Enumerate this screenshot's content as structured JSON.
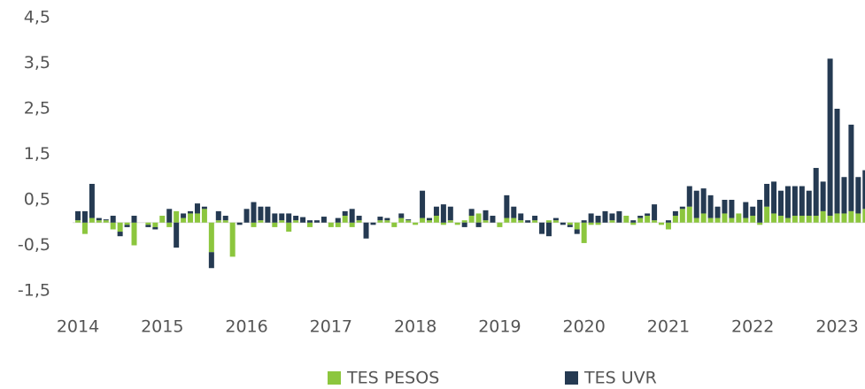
{
  "chart_data": {
    "type": "bar",
    "stacked": true,
    "categories": [
      "2014",
      null,
      null,
      null,
      null,
      null,
      null,
      null,
      null,
      null,
      null,
      null,
      "2015",
      null,
      null,
      null,
      null,
      null,
      null,
      null,
      null,
      null,
      null,
      null,
      "2016",
      null,
      null,
      null,
      null,
      null,
      null,
      null,
      null,
      null,
      null,
      null,
      "2017",
      null,
      null,
      null,
      null,
      null,
      null,
      null,
      null,
      null,
      null,
      null,
      "2018",
      null,
      null,
      null,
      null,
      null,
      null,
      null,
      null,
      null,
      null,
      null,
      "2019",
      null,
      null,
      null,
      null,
      null,
      null,
      null,
      null,
      null,
      null,
      null,
      "2020",
      null,
      null,
      null,
      null,
      null,
      null,
      null,
      null,
      null,
      null,
      null,
      "2021",
      null,
      null,
      null,
      null,
      null,
      null,
      null,
      null,
      null,
      null,
      null,
      "2022",
      null,
      null,
      null,
      null,
      null,
      null,
      null,
      null,
      null,
      null,
      null,
      "2023",
      null,
      null,
      null,
      null
    ],
    "series": [
      {
        "name": "TES PESOS",
        "color": "#8cc63e",
        "values": [
          0.05,
          -0.25,
          0.1,
          0.05,
          0.05,
          -0.15,
          -0.2,
          -0.05,
          -0.5,
          0,
          -0.05,
          -0.1,
          0.15,
          -0.1,
          0.25,
          0.1,
          0.2,
          0.2,
          0.3,
          -0.65,
          0.05,
          0.05,
          -0.75,
          0,
          0,
          -0.1,
          0.05,
          0,
          -0.1,
          0.05,
          -0.2,
          0.05,
          0,
          -0.1,
          0,
          0,
          -0.1,
          -0.1,
          0.15,
          -0.1,
          0.05,
          0,
          0,
          0.05,
          0.05,
          -0.1,
          0.1,
          0.05,
          -0.05,
          0.1,
          0.05,
          0.15,
          -0.05,
          0.05,
          -0.05,
          0.05,
          0.15,
          0.2,
          0.05,
          0,
          -0.1,
          0.1,
          0.1,
          0.05,
          0,
          0.05,
          0,
          0.05,
          0.05,
          0,
          -0.05,
          -0.15,
          -0.45,
          -0.05,
          -0.05,
          0,
          0.05,
          0,
          0.15,
          -0.05,
          0.1,
          0.15,
          0.05,
          -0.05,
          -0.15,
          0.15,
          0.3,
          0.35,
          0.1,
          0.2,
          0.1,
          0.1,
          0.2,
          0.1,
          0.2,
          0.1,
          0.15,
          -0.05,
          0.35,
          0.2,
          0.15,
          0.1,
          0.15,
          0.15,
          0.15,
          0.15,
          0.25,
          0.15,
          0.2,
          0.2,
          0.25,
          0.2,
          0.3
        ]
      },
      {
        "name": "TES UVR",
        "color": "#253a52",
        "values": [
          0.2,
          0.25,
          0.75,
          0.05,
          0.02,
          0.15,
          -0.1,
          -0.05,
          0.15,
          0,
          -0.05,
          -0.05,
          0,
          0.3,
          -0.55,
          0.1,
          0.05,
          0.22,
          0.05,
          -0.35,
          0.2,
          0.1,
          0,
          -0.05,
          0.3,
          0.45,
          0.3,
          0.35,
          0.2,
          0.15,
          0.2,
          0.1,
          0.12,
          0.05,
          0.05,
          0.13,
          0,
          0.1,
          0.1,
          0.3,
          0.1,
          -0.35,
          -0.05,
          0.08,
          0.05,
          0,
          0.1,
          0.02,
          0,
          0.6,
          0.05,
          0.2,
          0.4,
          0.3,
          0,
          -0.1,
          0.15,
          -0.1,
          0.22,
          0.15,
          0,
          0.5,
          0.25,
          0.15,
          0.05,
          0.1,
          -0.25,
          -0.3,
          0.05,
          -0.05,
          -0.05,
          -0.1,
          0.05,
          0.2,
          0.15,
          0.25,
          0.15,
          0.25,
          0,
          0.05,
          0.05,
          0.05,
          0.35,
          0,
          0.05,
          0.1,
          0.05,
          0.45,
          0.6,
          0.55,
          0.5,
          0.25,
          0.3,
          0.4,
          0,
          0.35,
          0.2,
          0.5,
          0.5,
          0.7,
          0.55,
          0.7,
          0.65,
          0.65,
          0.55,
          1.05,
          0.65,
          3.45,
          2.3,
          0.8,
          1.9,
          0.8,
          0.85
        ]
      }
    ],
    "ylim": [
      -1.5,
      4.5
    ],
    "yticks": [
      {
        "value": -1.5,
        "label": "-1,5"
      },
      {
        "value": -0.5,
        "label": "-0,5"
      },
      {
        "value": 0.5,
        "label": "0,5"
      },
      {
        "value": 1.5,
        "label": "1,5"
      },
      {
        "value": 2.5,
        "label": "2,5"
      },
      {
        "value": 3.5,
        "label": "3,5"
      },
      {
        "value": 4.5,
        "label": "4,5"
      }
    ],
    "grid": false,
    "legend": "bottom"
  }
}
